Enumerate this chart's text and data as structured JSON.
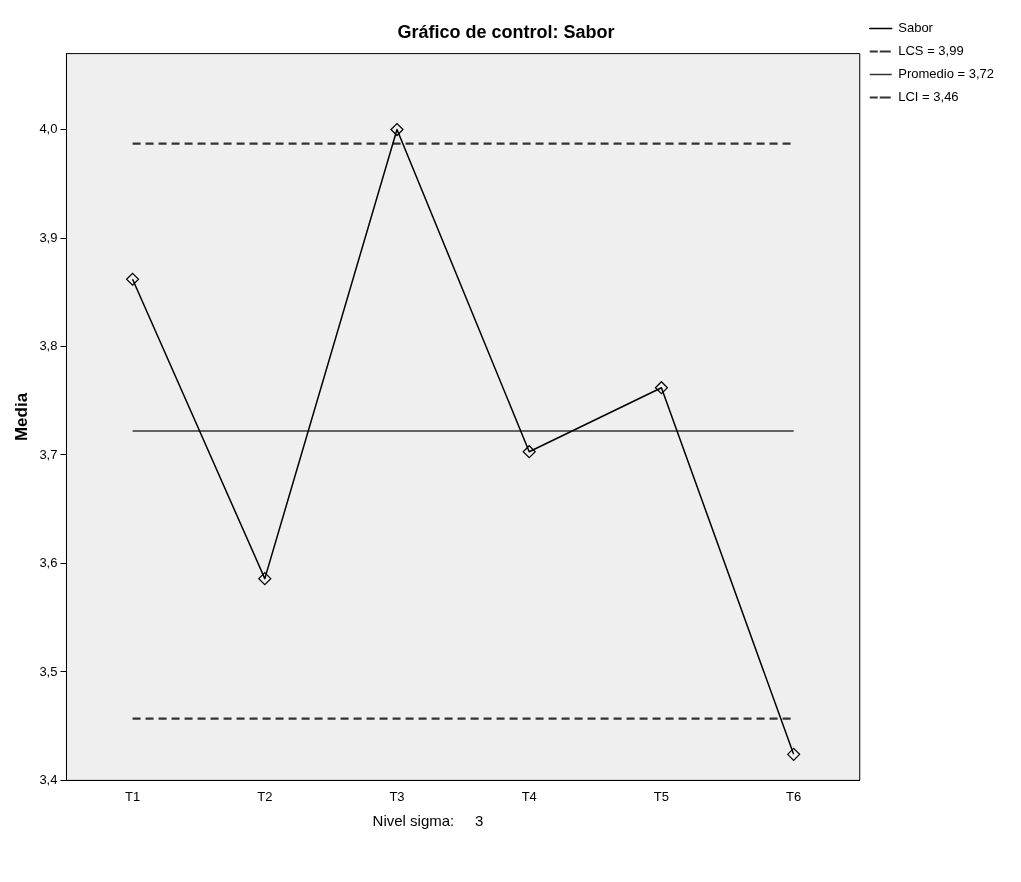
{
  "chart_data": {
    "type": "line",
    "title": "Gráfico de control: Sabor",
    "ylabel": "Media",
    "categories": [
      "T1",
      "T2",
      "T3",
      "T4",
      "T5",
      "T6"
    ],
    "series": [
      {
        "name": "Sabor",
        "color": "#000000",
        "values": [
          3.862,
          3.586,
          4.0,
          3.703,
          3.762,
          3.424
        ]
      }
    ],
    "ylim": [
      3.4,
      4.07
    ],
    "yticks": [
      {
        "value": 3.4,
        "label": "3,4"
      },
      {
        "value": 3.5,
        "label": "3,5"
      },
      {
        "value": 3.6,
        "label": "3,6"
      },
      {
        "value": 3.7,
        "label": "3,7"
      },
      {
        "value": 3.8,
        "label": "3,8"
      },
      {
        "value": 3.9,
        "label": "3,9"
      },
      {
        "value": 4.0,
        "label": "4,0"
      }
    ],
    "ref_lines": [
      {
        "axis": "y",
        "value": 3.987,
        "label": "LCS = 3,99",
        "color": "#333333",
        "line_style": "dashed"
      },
      {
        "axis": "y",
        "value": 3.722,
        "label": "Promedio = 3,72",
        "color": "#333333",
        "line_style": "solid"
      },
      {
        "axis": "y",
        "value": 3.457,
        "label": "LCI = 3,46",
        "color": "#333333",
        "line_style": "dashed"
      }
    ],
    "marker": "diamond",
    "line_style": "solid",
    "grid": false,
    "legend": "top right",
    "annotations": [
      "Nivel sigma:     3"
    ]
  }
}
